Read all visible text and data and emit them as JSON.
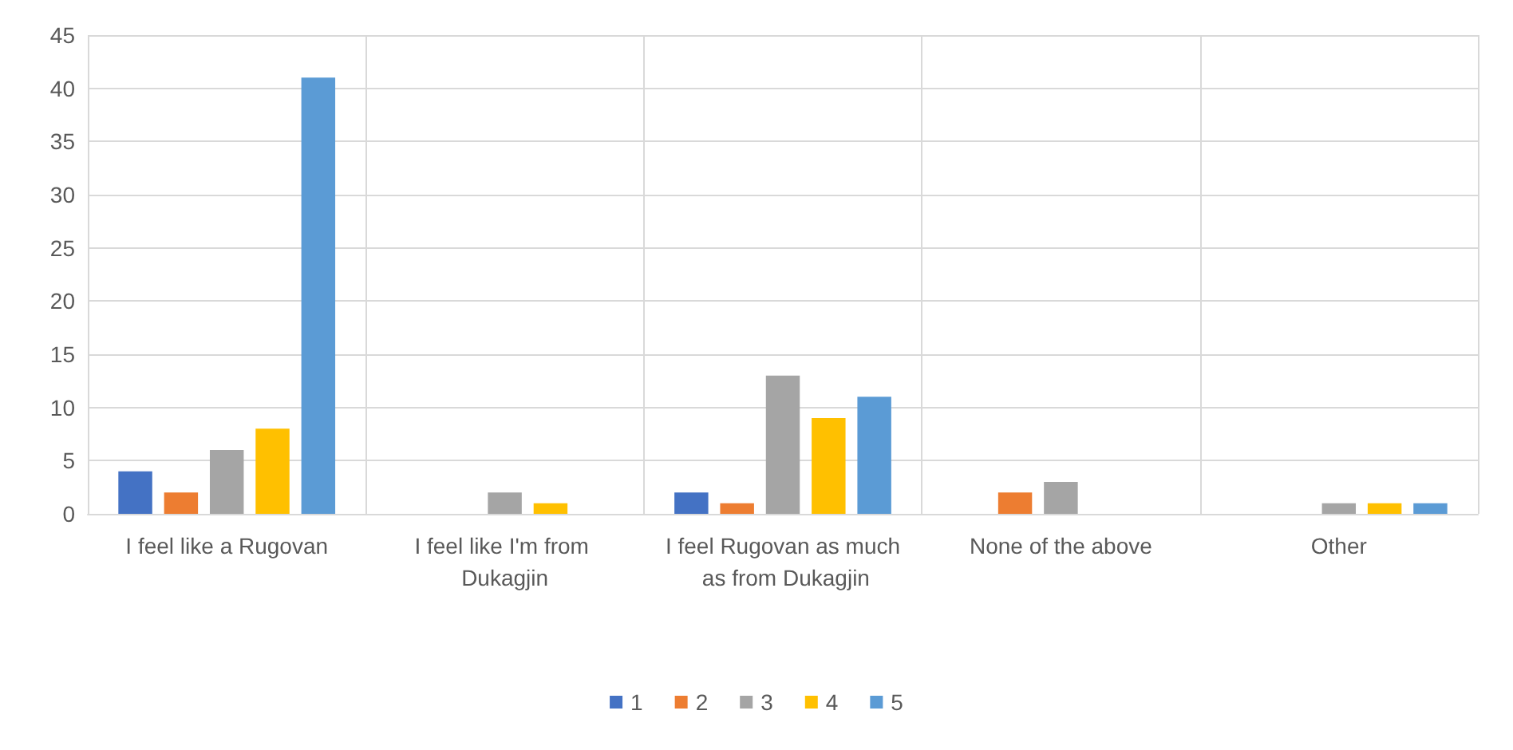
{
  "chart_data": {
    "type": "bar",
    "categories": [
      "I feel like a Rugovan",
      "I feel like I'm from Dukagjin",
      "I feel Rugovan as much as from Dukagjin",
      "None of the above",
      "Other"
    ],
    "series": [
      {
        "name": "1",
        "color": "#4472c4",
        "values": [
          4,
          null,
          2,
          null,
          null
        ]
      },
      {
        "name": "2",
        "color": "#ed7d31",
        "values": [
          2,
          null,
          1,
          2,
          null
        ]
      },
      {
        "name": "3",
        "color": "#a5a5a5",
        "values": [
          6,
          2,
          13,
          3,
          1
        ]
      },
      {
        "name": "4",
        "color": "#ffc000",
        "values": [
          8,
          1,
          9,
          null,
          1
        ]
      },
      {
        "name": "5",
        "color": "#5b9bd5",
        "values": [
          41,
          null,
          11,
          null,
          1
        ]
      }
    ],
    "ylim": [
      0,
      45
    ],
    "yticks": [
      0,
      5,
      10,
      15,
      20,
      25,
      30,
      35,
      40,
      45
    ],
    "grid": true,
    "legend": "bottom"
  }
}
